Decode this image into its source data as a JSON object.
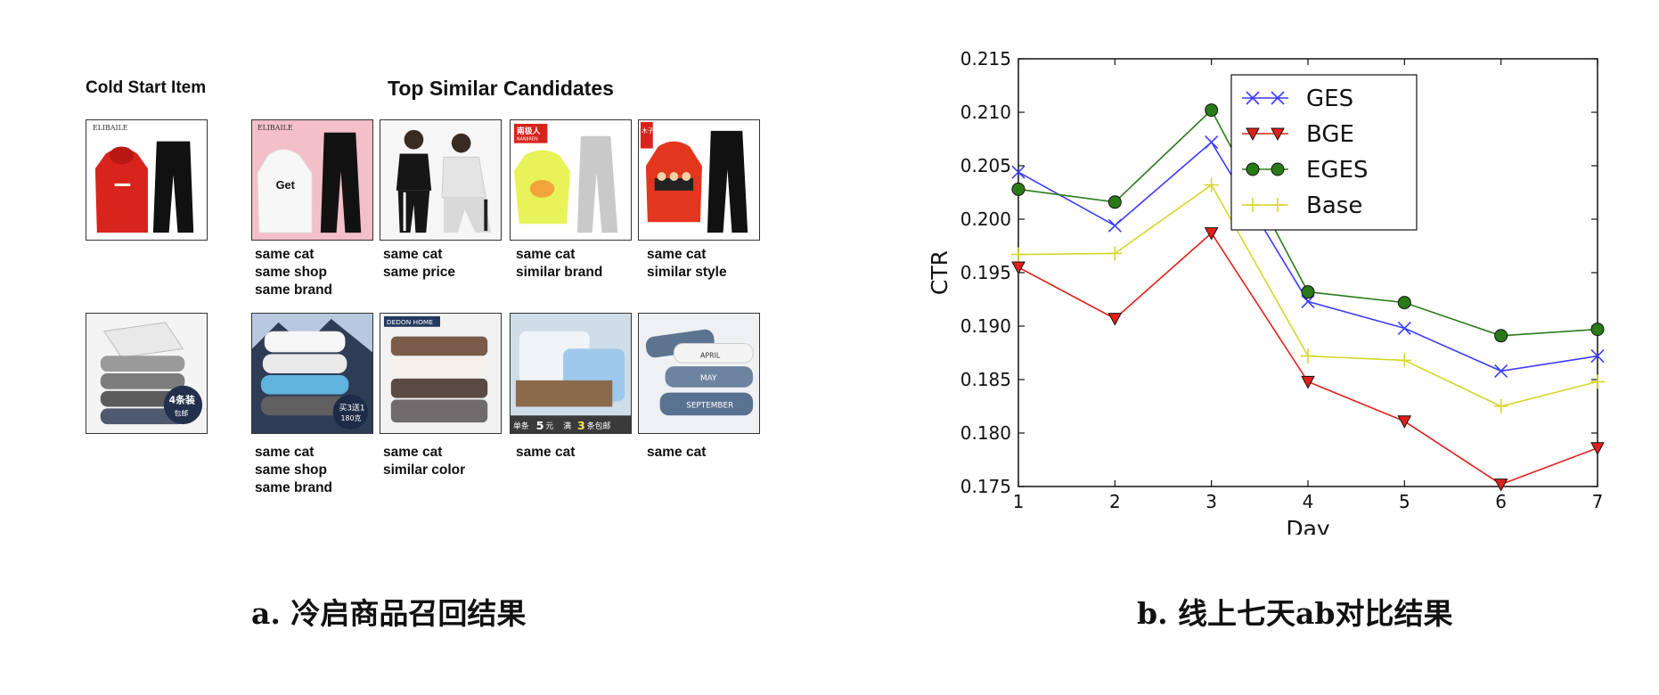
{
  "panel_a": {
    "cold_start_header": "Cold Start Item",
    "top_similar_header": "Top Similar Candidates",
    "rows": [
      {
        "cold_item": {
          "image": "red-hoodie-black-pants-set",
          "text": [
            "ELIBAILE"
          ]
        },
        "candidates": [
          {
            "image": "white-hoodie-black-pants-pink-bg",
            "text": [
              "ELIBAILE",
              "Get"
            ],
            "caption": [
              "same cat",
              "same shop",
              "same brand"
            ]
          },
          {
            "image": "two-women-black-white-tracksuits",
            "text": [],
            "caption": [
              "same cat",
              "same price"
            ]
          },
          {
            "image": "yellow-sweatshirt-grey-pants",
            "text": [
              "南极人",
              "NANJIREN"
            ],
            "caption": [
              "same cat",
              "similar brand"
            ]
          },
          {
            "image": "red-cartoon-hoodie-black-pants",
            "text": [
              "木子"
            ],
            "caption": [
              "same cat",
              "similar style"
            ]
          }
        ]
      },
      {
        "cold_item": {
          "image": "stacked-grey-towels",
          "text": [
            "4条装",
            "包邮"
          ]
        },
        "candidates": [
          {
            "image": "stacked-white-blue-towels-mountain",
            "text": [
              "买3送1",
              "180克"
            ],
            "caption": [
              "same cat",
              "same shop",
              "same brand"
            ]
          },
          {
            "image": "brown-white-striped-towels",
            "text": [
              "DEDON HOME"
            ],
            "caption": [
              "same cat",
              "similar color"
            ]
          },
          {
            "image": "towels-in-basket-blue",
            "text": [
              "单条",
              "5",
              "元",
              "满",
              "3",
              "条包邮"
            ],
            "caption": [
              "same cat"
            ]
          },
          {
            "image": "rolled-blue-towels-lettering",
            "text": [
              "APRIL",
              "MAY",
              "SEPTEMBER"
            ],
            "caption": [
              "same cat"
            ]
          }
        ]
      }
    ],
    "subcaption": "a. 冷启商品召回结果"
  },
  "panel_b": {
    "subcaption": "b. 线上七天ab对比结果"
  },
  "chart_data": {
    "type": "line",
    "title": "",
    "xlabel": "Day",
    "ylabel": "CTR",
    "x": [
      1,
      2,
      3,
      4,
      5,
      6,
      7
    ],
    "xlim": [
      1,
      7
    ],
    "ylim": [
      0.175,
      0.215
    ],
    "xticks": [
      "1",
      "2",
      "3",
      "4",
      "5",
      "6",
      "7"
    ],
    "yticks": [
      "0.175",
      "0.180",
      "0.185",
      "0.190",
      "0.195",
      "0.200",
      "0.205",
      "0.210",
      "0.215"
    ],
    "grid": false,
    "legend_position": "top-right",
    "series": [
      {
        "name": "GES",
        "color": "#3b3bff",
        "marker": "x",
        "values": [
          0.2044,
          0.1994,
          0.2072,
          0.1923,
          0.1898,
          0.1858,
          0.1872
        ]
      },
      {
        "name": "BGE",
        "color": "#e0201b",
        "marker": "triangle-down",
        "values": [
          0.1955,
          0.1907,
          0.1987,
          0.1848,
          0.1811,
          0.1752,
          0.1786
        ]
      },
      {
        "name": "EGES",
        "color": "#2a7a18",
        "marker": "circle",
        "values": [
          0.2028,
          0.2016,
          0.2102,
          0.1932,
          0.1922,
          0.1891,
          0.1897
        ]
      },
      {
        "name": "Base",
        "color": "#d6d62a",
        "marker": "plus",
        "values": [
          0.1967,
          0.1968,
          0.2032,
          0.1872,
          0.1868,
          0.1825,
          0.1848
        ]
      }
    ]
  }
}
